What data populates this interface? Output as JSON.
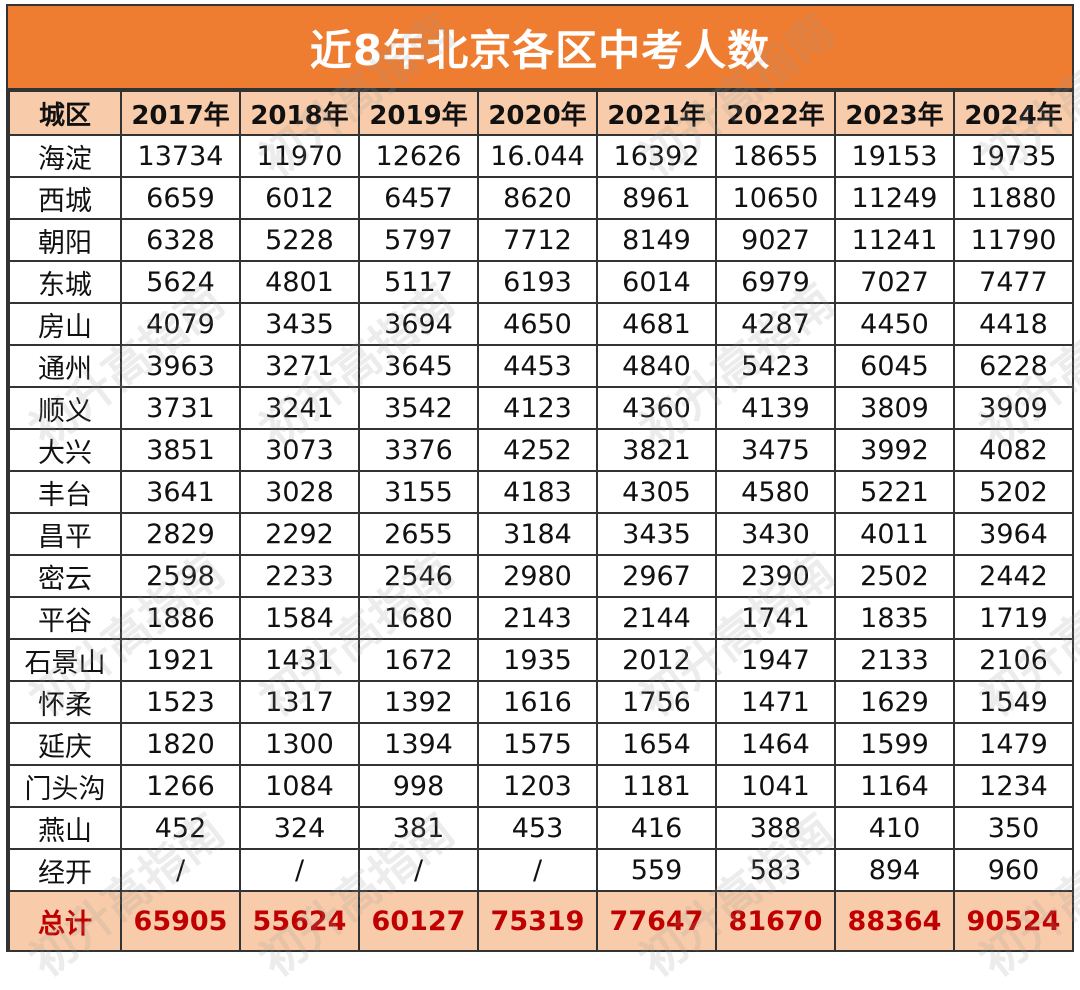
{
  "title": "近8年北京各区中考人数",
  "watermark_text": "初升高指南",
  "colors": {
    "title_bg": "#ee7d31",
    "header_bg": "#f8ccab",
    "total_text": "#c00000"
  },
  "chart_data": {
    "type": "table",
    "title": "近8年北京各区中考人数",
    "columns": [
      "城区",
      "2017年",
      "2018年",
      "2019年",
      "2020年",
      "2021年",
      "2022年",
      "2023年",
      "2024年"
    ],
    "rows": [
      [
        "海淀",
        "13734",
        "11970",
        "12626",
        "16.044",
        "16392",
        "18655",
        "19153",
        "19735"
      ],
      [
        "西城",
        "6659",
        "6012",
        "6457",
        "8620",
        "8961",
        "10650",
        "11249",
        "11880"
      ],
      [
        "朝阳",
        "6328",
        "5228",
        "5797",
        "7712",
        "8149",
        "9027",
        "11241",
        "11790"
      ],
      [
        "东城",
        "5624",
        "4801",
        "5117",
        "6193",
        "6014",
        "6979",
        "7027",
        "7477"
      ],
      [
        "房山",
        "4079",
        "3435",
        "3694",
        "4650",
        "4681",
        "4287",
        "4450",
        "4418"
      ],
      [
        "通州",
        "3963",
        "3271",
        "3645",
        "4453",
        "4840",
        "5423",
        "6045",
        "6228"
      ],
      [
        "顺义",
        "3731",
        "3241",
        "3542",
        "4123",
        "4360",
        "4139",
        "3809",
        "3909"
      ],
      [
        "大兴",
        "3851",
        "3073",
        "3376",
        "4252",
        "3821",
        "3475",
        "3992",
        "4082"
      ],
      [
        "丰台",
        "3641",
        "3028",
        "3155",
        "4183",
        "4305",
        "4580",
        "5221",
        "5202"
      ],
      [
        "昌平",
        "2829",
        "2292",
        "2655",
        "3184",
        "3435",
        "3430",
        "4011",
        "3964"
      ],
      [
        "密云",
        "2598",
        "2233",
        "2546",
        "2980",
        "2967",
        "2390",
        "2502",
        "2442"
      ],
      [
        "平谷",
        "1886",
        "1584",
        "1680",
        "2143",
        "2144",
        "1741",
        "1835",
        "1719"
      ],
      [
        "石景山",
        "1921",
        "1431",
        "1672",
        "1935",
        "2012",
        "1947",
        "2133",
        "2106"
      ],
      [
        "怀柔",
        "1523",
        "1317",
        "1392",
        "1616",
        "1756",
        "1471",
        "1629",
        "1549"
      ],
      [
        "延庆",
        "1820",
        "1300",
        "1394",
        "1575",
        "1654",
        "1464",
        "1599",
        "1479"
      ],
      [
        "门头沟",
        "1266",
        "1084",
        "998",
        "1203",
        "1181",
        "1041",
        "1164",
        "1234"
      ],
      [
        "燕山",
        "452",
        "324",
        "381",
        "453",
        "416",
        "388",
        "410",
        "350"
      ],
      [
        "经开",
        "/",
        "/",
        "/",
        "/",
        "559",
        "583",
        "894",
        "960"
      ]
    ],
    "total_row": [
      "总计",
      "65905",
      "55624",
      "60127",
      "75319",
      "77647",
      "81670",
      "88364",
      "90524"
    ]
  }
}
